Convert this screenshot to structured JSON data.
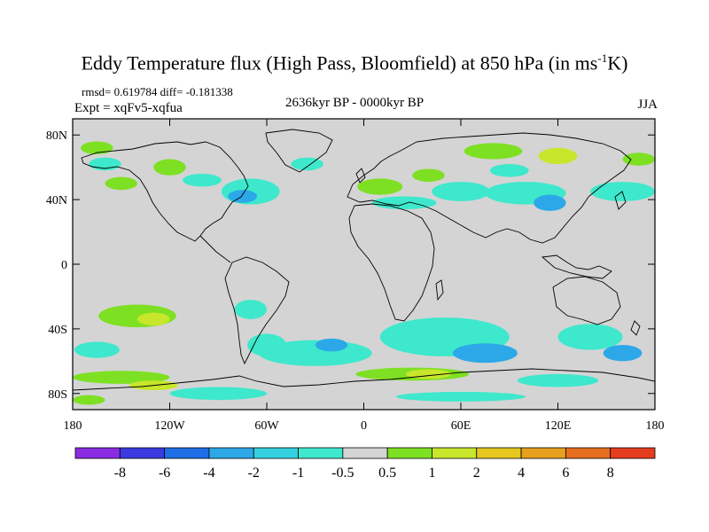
{
  "title_main": "Eddy Temperature flux (High Pass, Bloomfield) at 850 hPa (in ms",
  "title_sup": "-1",
  "title_end": "K)",
  "stats": "rmsd= 0.619784 diff= -0.181338",
  "expt": "Expt = xqFv5-xqfua",
  "period": "2636kyr BP - 0000kyr BP",
  "season": "JJA",
  "axes": {
    "lon_ticks": [
      {
        "lon": -180,
        "label": "180"
      },
      {
        "lon": -120,
        "label": "120W"
      },
      {
        "lon": -60,
        "label": "60W"
      },
      {
        "lon": 0,
        "label": "0"
      },
      {
        "lon": 60,
        "label": "60E"
      },
      {
        "lon": 120,
        "label": "120E"
      },
      {
        "lon": 180,
        "label": "180"
      }
    ],
    "lat_ticks": [
      {
        "lat": 80,
        "label": "80N"
      },
      {
        "lat": 40,
        "label": "40N"
      },
      {
        "lat": 0,
        "label": "0"
      },
      {
        "lat": -40,
        "label": "40S"
      },
      {
        "lat": -80,
        "label": "80S"
      }
    ]
  },
  "colorbar": {
    "colors": [
      "#8a2be2",
      "#3a3ae0",
      "#1e6ee6",
      "#2ca8e8",
      "#34d0e0",
      "#3ee8cc",
      "#d4d4d4",
      "#7ee022",
      "#c8e62c",
      "#e6c81e",
      "#e6a01e",
      "#e66e1e",
      "#e63c1e"
    ],
    "labels": [
      "-8",
      "-6",
      "-4",
      "-2",
      "-1",
      "-0.5",
      "0.5",
      "1",
      "2",
      "4",
      "6",
      "8"
    ]
  },
  "field_blobs": [
    {
      "lon": -165,
      "lat": 72,
      "rx": 10,
      "ry": 4,
      "level": "pos1"
    },
    {
      "lon": -120,
      "lat": 60,
      "rx": 10,
      "ry": 5,
      "level": "pos1"
    },
    {
      "lon": -70,
      "lat": 45,
      "rx": 18,
      "ry": 8,
      "level": "neg1"
    },
    {
      "lon": -75,
      "lat": 42,
      "rx": 9,
      "ry": 4,
      "level": "neg2"
    },
    {
      "lon": -100,
      "lat": 52,
      "rx": 12,
      "ry": 4,
      "level": "neg1"
    },
    {
      "lon": -160,
      "lat": 62,
      "rx": 10,
      "ry": 4,
      "level": "neg1"
    },
    {
      "lon": -150,
      "lat": 50,
      "rx": 10,
      "ry": 4,
      "level": "pos1"
    },
    {
      "lon": -35,
      "lat": 62,
      "rx": 10,
      "ry": 4,
      "level": "neg1"
    },
    {
      "lon": 10,
      "lat": 48,
      "rx": 14,
      "ry": 5,
      "level": "pos1"
    },
    {
      "lon": 25,
      "lat": 38,
      "rx": 20,
      "ry": 4,
      "level": "neg1"
    },
    {
      "lon": 60,
      "lat": 45,
      "rx": 18,
      "ry": 6,
      "level": "neg1"
    },
    {
      "lon": 100,
      "lat": 44,
      "rx": 25,
      "ry": 7,
      "level": "neg1"
    },
    {
      "lon": 115,
      "lat": 38,
      "rx": 10,
      "ry": 5,
      "level": "neg2"
    },
    {
      "lon": 160,
      "lat": 45,
      "rx": 20,
      "ry": 6,
      "level": "neg1"
    },
    {
      "lon": 80,
      "lat": 70,
      "rx": 18,
      "ry": 5,
      "level": "pos1"
    },
    {
      "lon": 120,
      "lat": 67,
      "rx": 12,
      "ry": 5,
      "level": "pos2"
    },
    {
      "lon": 170,
      "lat": 65,
      "rx": 10,
      "ry": 4,
      "level": "pos1"
    },
    {
      "lon": 90,
      "lat": 58,
      "rx": 12,
      "ry": 4,
      "level": "neg1"
    },
    {
      "lon": 40,
      "lat": 55,
      "rx": 10,
      "ry": 4,
      "level": "pos1"
    },
    {
      "lon": -140,
      "lat": -32,
      "rx": 24,
      "ry": 7,
      "level": "pos1"
    },
    {
      "lon": -130,
      "lat": -34,
      "rx": 10,
      "ry": 4,
      "level": "pos2"
    },
    {
      "lon": -70,
      "lat": -28,
      "rx": 10,
      "ry": 6,
      "level": "neg1"
    },
    {
      "lon": -60,
      "lat": -50,
      "rx": 12,
      "ry": 7,
      "level": "neg1"
    },
    {
      "lon": -30,
      "lat": -55,
      "rx": 35,
      "ry": 8,
      "level": "neg1"
    },
    {
      "lon": -20,
      "lat": -50,
      "rx": 10,
      "ry": 4,
      "level": "neg2"
    },
    {
      "lon": 50,
      "lat": -45,
      "rx": 40,
      "ry": 12,
      "level": "neg1"
    },
    {
      "lon": 75,
      "lat": -55,
      "rx": 20,
      "ry": 6,
      "level": "neg2"
    },
    {
      "lon": 140,
      "lat": -45,
      "rx": 20,
      "ry": 8,
      "level": "neg1"
    },
    {
      "lon": 160,
      "lat": -55,
      "rx": 12,
      "ry": 5,
      "level": "neg2"
    },
    {
      "lon": -165,
      "lat": -53,
      "rx": 14,
      "ry": 5,
      "level": "neg1"
    },
    {
      "lon": -150,
      "lat": -70,
      "rx": 30,
      "ry": 4,
      "level": "pos1"
    },
    {
      "lon": -130,
      "lat": -75,
      "rx": 15,
      "ry": 3,
      "level": "pos2"
    },
    {
      "lon": 30,
      "lat": -68,
      "rx": 35,
      "ry": 4,
      "level": "pos1"
    },
    {
      "lon": 40,
      "lat": -68,
      "rx": 14,
      "ry": 3,
      "level": "pos2"
    },
    {
      "lon": 120,
      "lat": -72,
      "rx": 25,
      "ry": 4,
      "level": "neg1"
    },
    {
      "lon": -90,
      "lat": -80,
      "rx": 30,
      "ry": 4,
      "level": "neg1"
    },
    {
      "lon": 60,
      "lat": -82,
      "rx": 40,
      "ry": 3,
      "level": "neg1"
    },
    {
      "lon": -170,
      "lat": -84,
      "rx": 10,
      "ry": 3,
      "level": "pos1"
    }
  ]
}
